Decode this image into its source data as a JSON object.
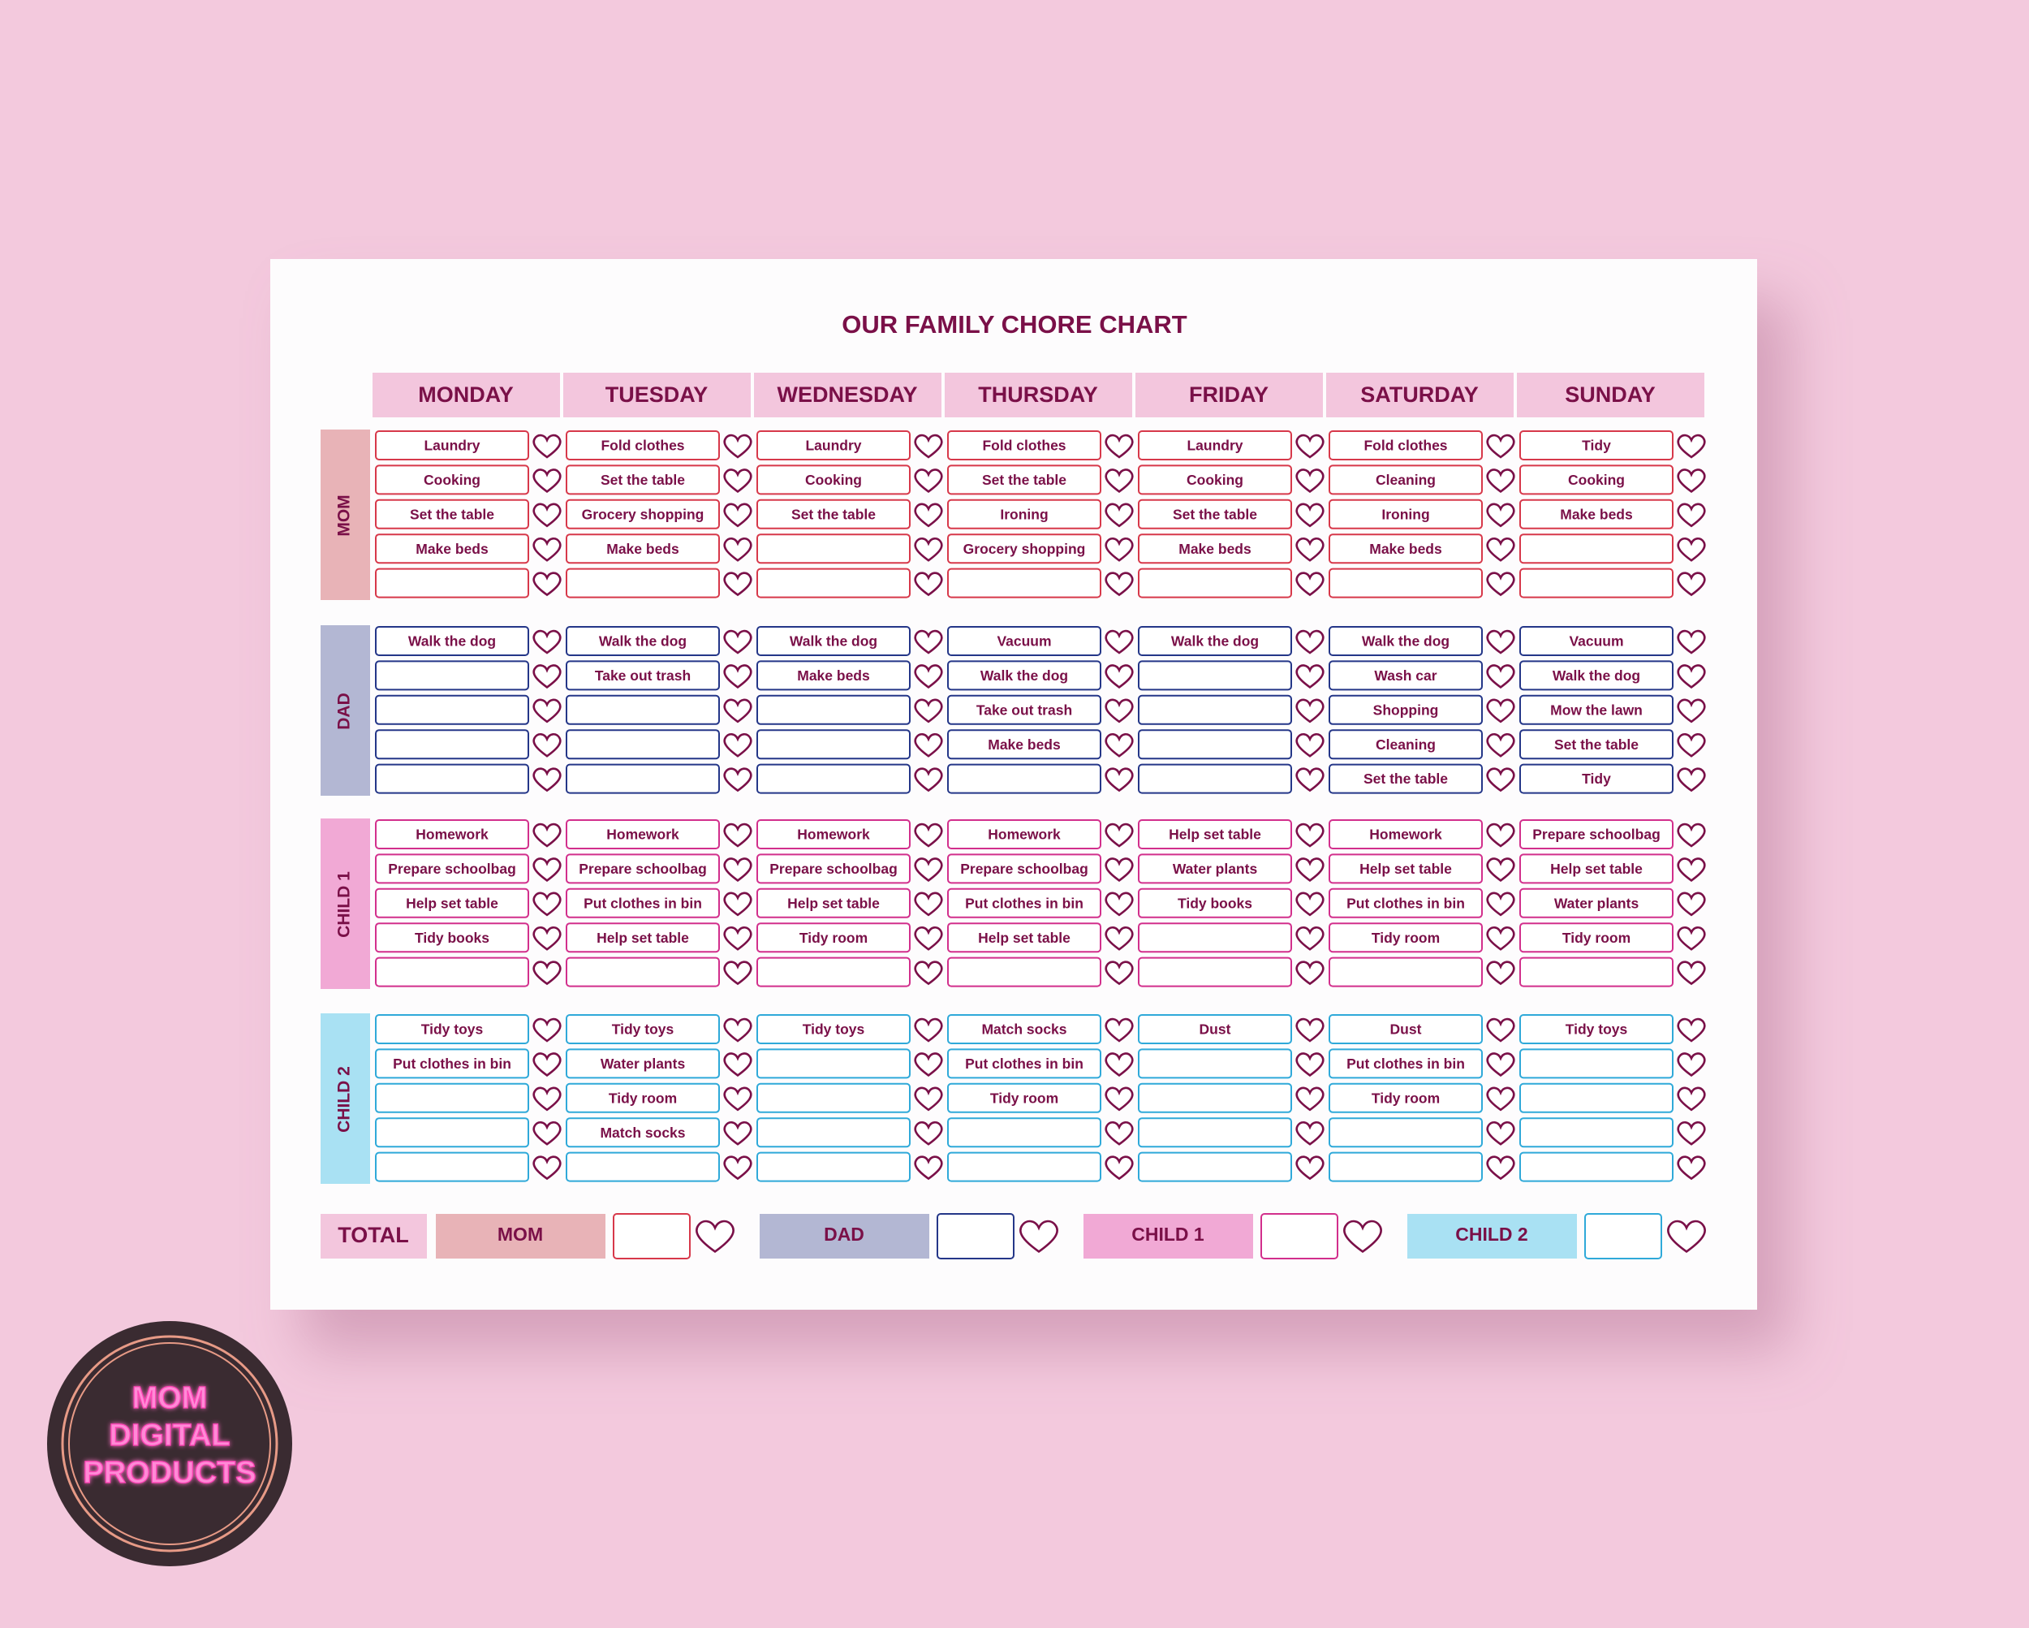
{
  "header": {
    "title": "OUR FAMILY CHORE CHART"
  },
  "days": [
    "MONDAY",
    "TUESDAY",
    "WEDNESDAY",
    "THURSDAY",
    "FRIDAY",
    "SATURDAY",
    "SUNDAY"
  ],
  "people": [
    {
      "name": "MOM",
      "chores": [
        [
          "Laundry",
          "Cooking",
          "Set the table",
          "Make beds"
        ],
        [
          "Fold clothes",
          "Set the table",
          "Grocery shopping",
          "Make beds"
        ],
        [
          "Laundry",
          "Cooking",
          "Set the table"
        ],
        [
          "Fold clothes",
          "Set the table",
          "Ironing",
          "Grocery shopping"
        ],
        [
          "Laundry",
          "Cooking",
          "Set the table",
          "Make beds"
        ],
        [
          "Fold clothes",
          "Cleaning",
          "Ironing",
          "Make beds"
        ],
        [
          "Tidy",
          "Cooking",
          "Make beds"
        ]
      ]
    },
    {
      "name": "DAD",
      "chores": [
        [
          "Walk the dog"
        ],
        [
          "Walk the dog",
          "Take out trash"
        ],
        [
          "Walk the dog",
          "Make beds"
        ],
        [
          "Vacuum",
          "Walk the dog",
          "Take out trash",
          "Make beds"
        ],
        [
          "Walk the dog"
        ],
        [
          "Walk the dog",
          "Wash car",
          "Shopping",
          "Cleaning",
          "Set the table"
        ],
        [
          "Vacuum",
          "Walk the dog",
          "Mow the lawn",
          "Set the table",
          "Tidy"
        ]
      ]
    },
    {
      "name": "CHILD 1",
      "chores": [
        [
          "Homework",
          "Prepare schoolbag",
          "Help set table",
          "Tidy books"
        ],
        [
          "Homework",
          "Prepare schoolbag",
          "Put clothes in bin",
          "Help set table"
        ],
        [
          "Homework",
          "Prepare schoolbag",
          "Help set table",
          "Tidy room"
        ],
        [
          "Homework",
          "Prepare schoolbag",
          "Put clothes in bin",
          "Help set table"
        ],
        [
          "Help set table",
          "Water plants",
          "Tidy books"
        ],
        [
          "Homework",
          "Help set table",
          "Put clothes in bin",
          "Tidy room"
        ],
        [
          "Prepare schoolbag",
          "Help set table",
          "Water plants",
          "Tidy room"
        ]
      ]
    },
    {
      "name": "CHILD 2",
      "chores": [
        [
          "Tidy toys",
          "Put clothes in bin"
        ],
        [
          "Tidy toys",
          "Water plants",
          "Tidy room",
          "Match socks"
        ],
        [
          "Tidy toys"
        ],
        [
          "Match socks",
          "Put clothes in bin",
          "Tidy room"
        ],
        [
          "Dust"
        ],
        [
          "Dust",
          "Put clothes in bin",
          "Tidy room"
        ],
        [
          "Tidy toys"
        ]
      ]
    }
  ],
  "footer": {
    "total": "TOTAL"
  },
  "logo": {
    "lines": [
      "MOM",
      "DIGITAL",
      "PRODUCTS"
    ]
  }
}
